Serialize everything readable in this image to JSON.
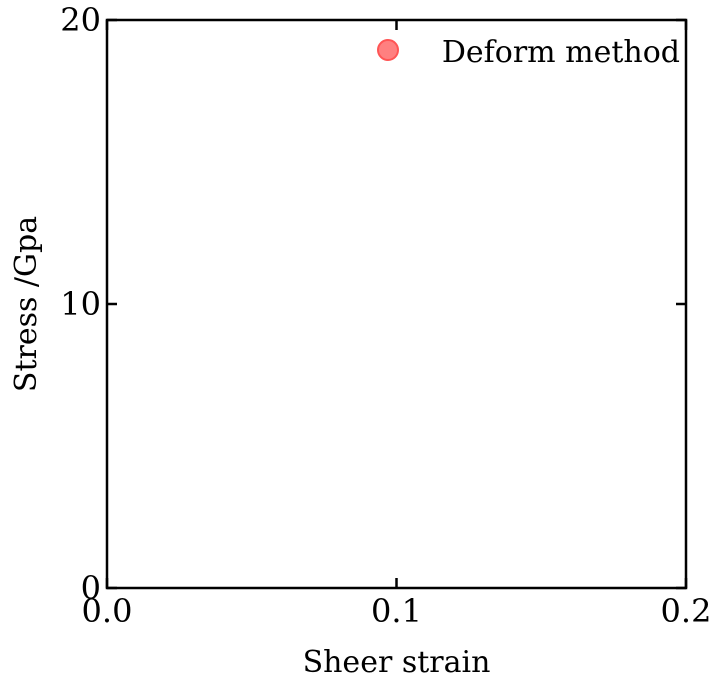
{
  "chart_data": {
    "type": "scatter",
    "title": "",
    "xlabel": "Sheer strain",
    "ylabel": "Stress /Gpa",
    "xlim": [
      0.0,
      0.2
    ],
    "ylim": [
      0,
      20
    ],
    "xticks": [
      0.0,
      0.1,
      0.2
    ],
    "xtick_labels": [
      "0.0",
      "0.1",
      "0.2"
    ],
    "yticks": [
      0,
      10,
      20
    ],
    "ytick_labels": [
      "0",
      "10",
      "20"
    ],
    "grid": false,
    "legend": {
      "placement": "top-right",
      "entries": [
        "Deform method"
      ]
    },
    "series": [
      {
        "name": "Deform method",
        "color": "#ff5555",
        "x": [],
        "y": []
      }
    ]
  }
}
